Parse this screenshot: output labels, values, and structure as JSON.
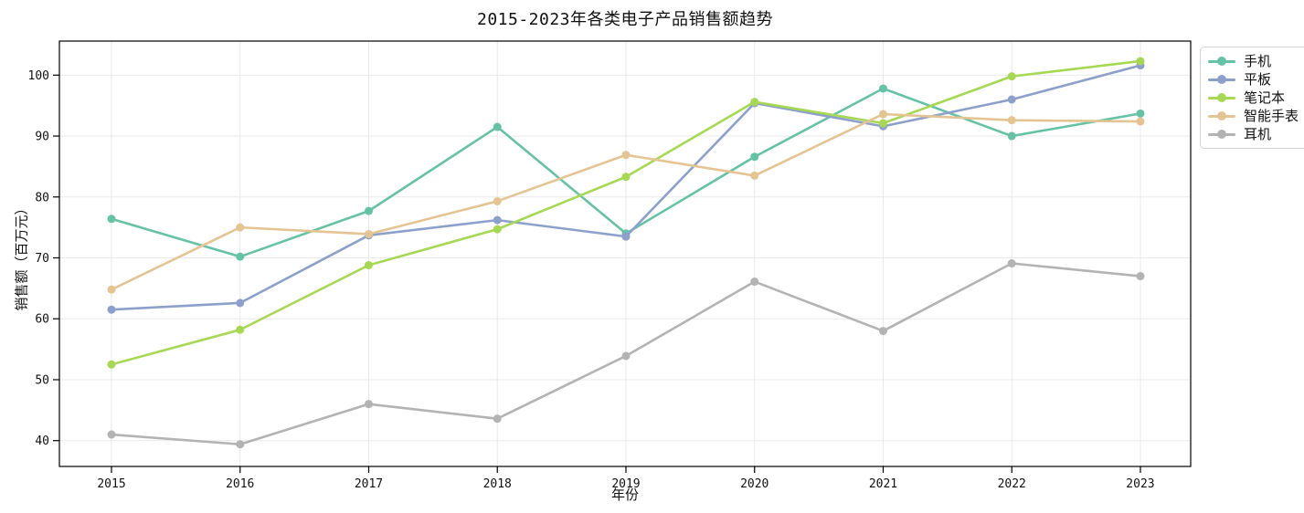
{
  "chart_data": {
    "type": "line",
    "title": "2015-2023年各类电子产品销售额趋势",
    "xlabel": "年份",
    "ylabel": "销售额（百万元）",
    "x": [
      2015,
      2016,
      2017,
      2018,
      2019,
      2020,
      2021,
      2022,
      2023
    ],
    "series": [
      {
        "name": "手机",
        "color": "#66c2a5",
        "values": [
          76.4,
          70.2,
          77.7,
          91.5,
          74.0,
          86.6,
          97.8,
          90.0,
          93.7
        ]
      },
      {
        "name": "平板",
        "color": "#8da0cb",
        "values": [
          61.5,
          62.6,
          73.7,
          76.2,
          73.5,
          95.4,
          91.6,
          96.0,
          101.6
        ]
      },
      {
        "name": "笔记本",
        "color": "#a6d854",
        "values": [
          52.5,
          58.2,
          68.8,
          74.7,
          83.3,
          95.6,
          92.1,
          99.8,
          102.3
        ]
      },
      {
        "name": "智能手表",
        "color": "#e5c494",
        "values": [
          64.8,
          75.0,
          73.9,
          79.3,
          86.9,
          83.5,
          93.6,
          92.6,
          92.4
        ]
      },
      {
        "name": "耳机",
        "color": "#b3b3b3",
        "values": [
          41.0,
          39.4,
          46.0,
          43.6,
          53.9,
          66.1,
          58.0,
          69.1,
          67.0
        ]
      }
    ],
    "yticks": [
      40,
      50,
      60,
      70,
      80,
      90,
      100
    ],
    "ylim": [
      35.76,
      105.59
    ],
    "xlim": [
      2014.595,
      2023.391
    ],
    "grid": true,
    "legend_position": "outside-top-right",
    "marker": "circle"
  }
}
